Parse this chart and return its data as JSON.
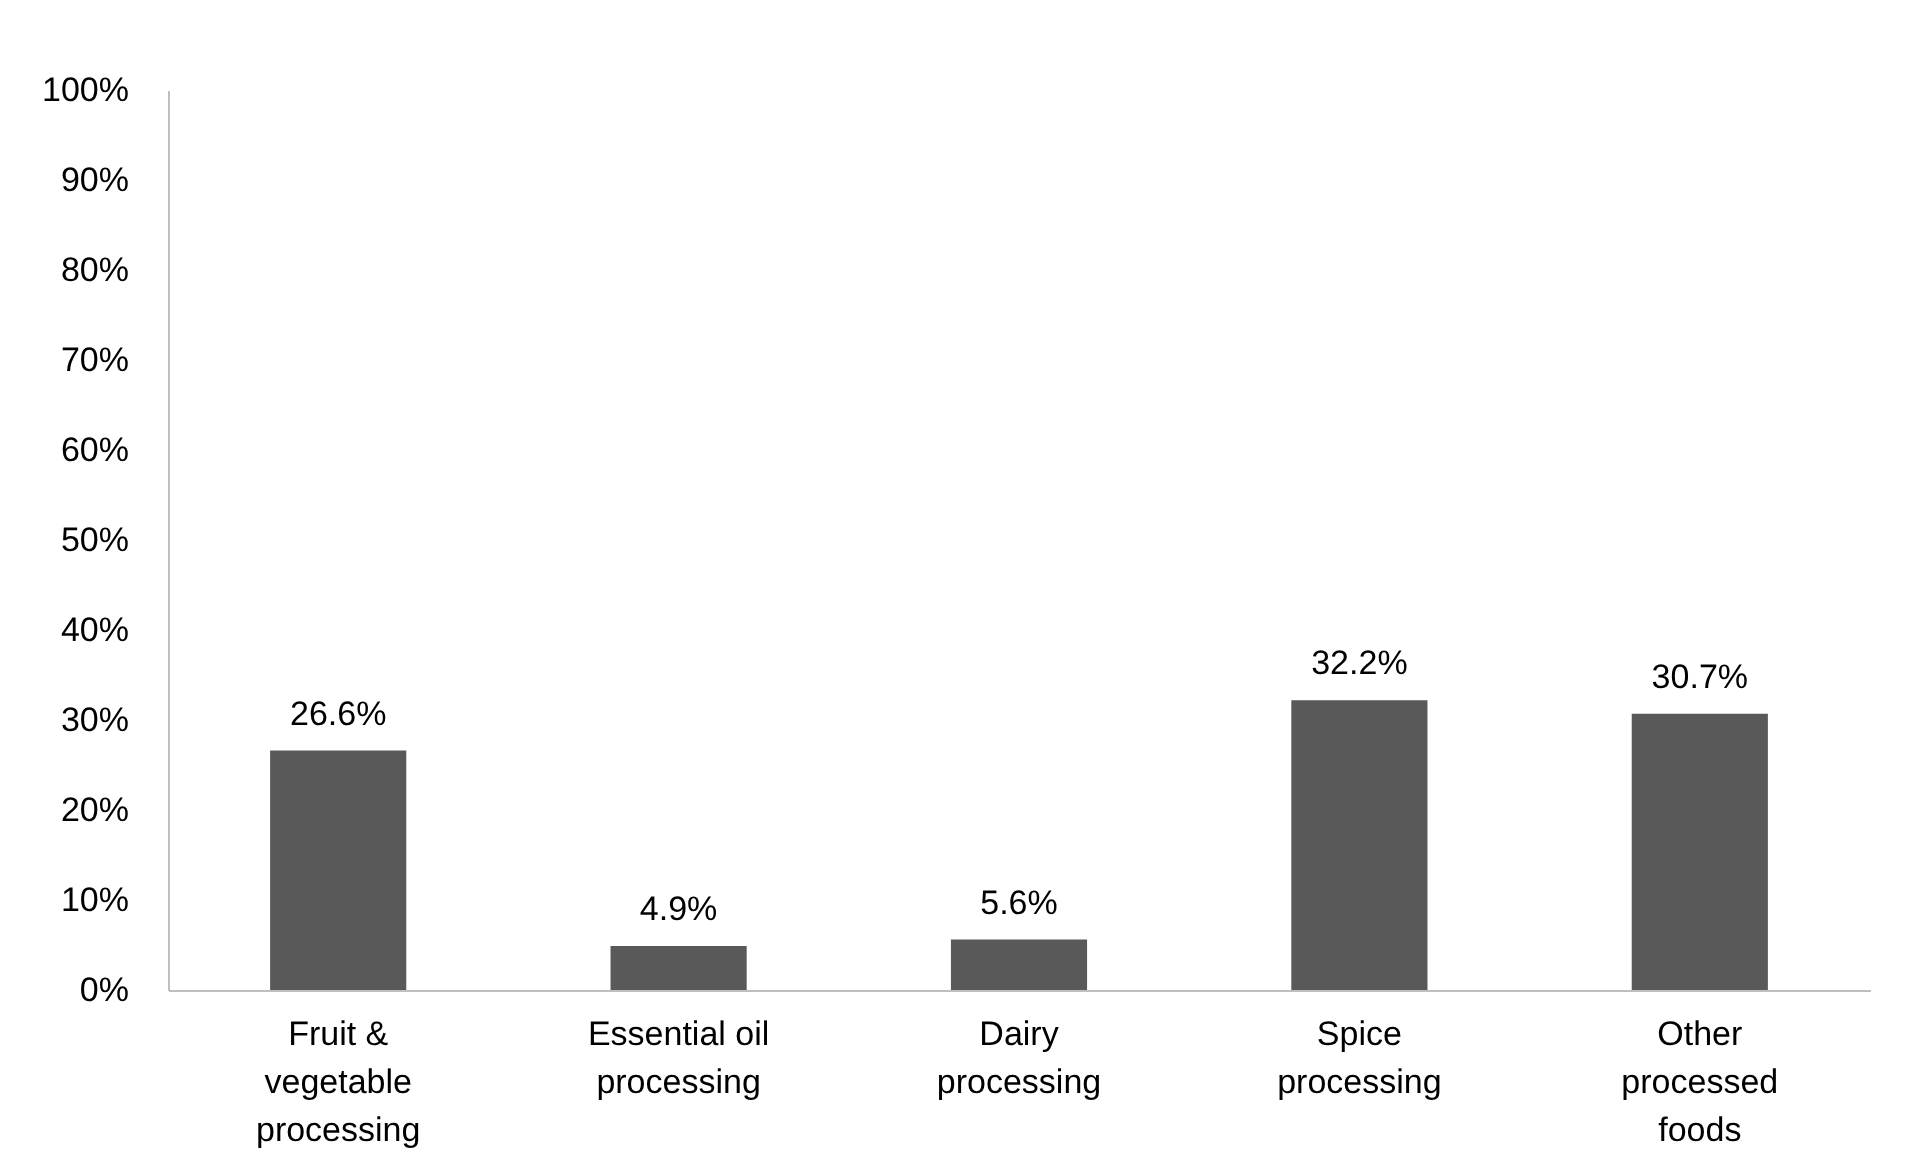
{
  "chart_data": {
    "type": "bar",
    "categories": [
      "Fruit & vegetable processing",
      "Essential oil processing",
      "Dairy processing",
      "Spice processing",
      "Other processed foods"
    ],
    "values": [
      26.6,
      4.9,
      5.6,
      32.2,
      30.7
    ],
    "value_labels": [
      "26.6%",
      "4.9%",
      "5.6%",
      "32.2%",
      "30.7%"
    ],
    "color": "#595959",
    "ylim": [
      0,
      100
    ],
    "yticks": [
      {
        "value": 0,
        "label": "0%"
      },
      {
        "value": 10,
        "label": "10%"
      },
      {
        "value": 20,
        "label": "20%"
      },
      {
        "value": 30,
        "label": "30%"
      },
      {
        "value": 40,
        "label": "40%"
      },
      {
        "value": 50,
        "label": "50%"
      },
      {
        "value": 60,
        "label": "60%"
      },
      {
        "value": 70,
        "label": "70%"
      },
      {
        "value": 80,
        "label": "80%"
      },
      {
        "value": 90,
        "label": "90%"
      },
      {
        "value": 100,
        "label": "100%"
      }
    ],
    "grid": false
  }
}
